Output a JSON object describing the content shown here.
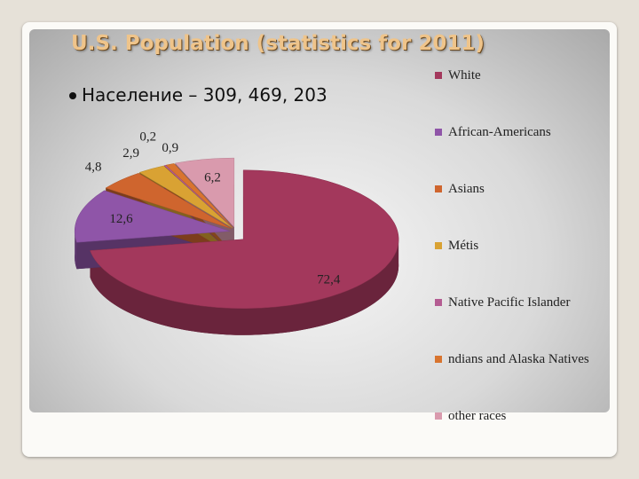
{
  "chart_data": {
    "type": "pie",
    "title": "U.S. Population (statistics for 2011)",
    "bullet": "Население – 309, 469, 203",
    "categories": [
      "White",
      "African-Americans",
      "Asians",
      "Métis",
      "Native Pacific Islander",
      "ndians and Alaska Natives",
      "other races"
    ],
    "values": [
      72.4,
      12.6,
      4.8,
      2.9,
      0.2,
      0.9,
      6.2
    ],
    "value_labels": [
      "72,4",
      "12,6",
      "4,8",
      "2,9",
      "0,2",
      "0,9",
      "6,2"
    ],
    "colors": [
      "#a3385c",
      "#8f55a8",
      "#cf652e",
      "#d9a233",
      "#b45c92",
      "#d8742f",
      "#d99aad"
    ],
    "legend": "right"
  }
}
